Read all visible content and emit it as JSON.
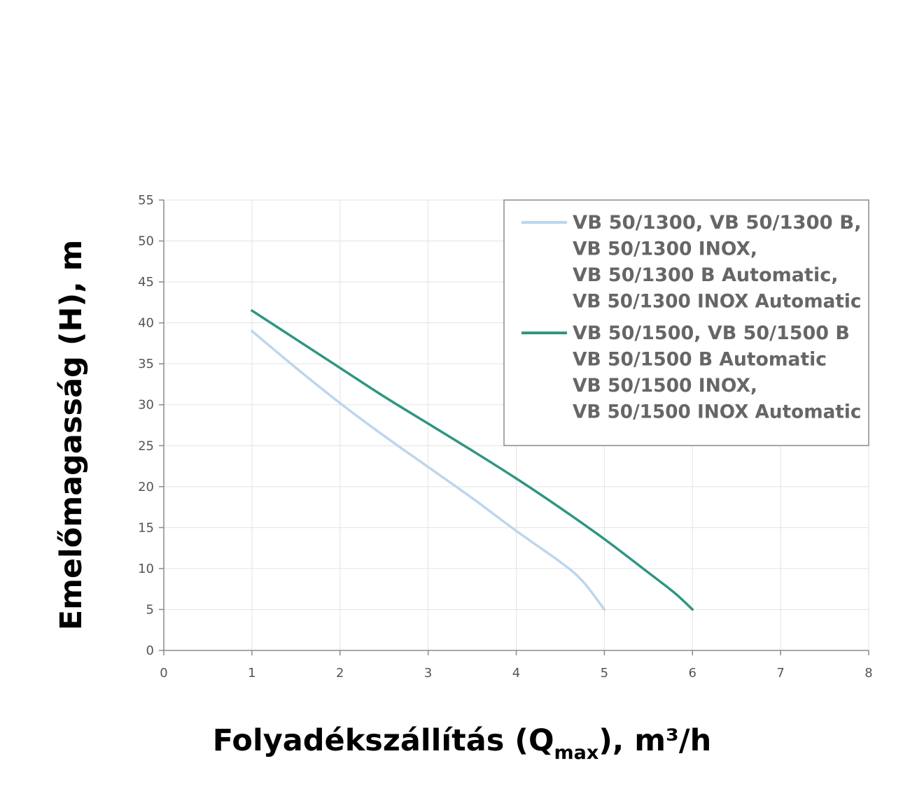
{
  "chart_data": {
    "type": "line",
    "xlabel": "Folyadékszállítás (Q",
    "xlabel_sub": "max",
    "xlabel_suffix": "), m³/h",
    "ylabel": "Emelőmagasság (H), m",
    "xlim": [
      0,
      8
    ],
    "ylim": [
      0,
      55
    ],
    "x_ticks": [
      0,
      1,
      2,
      3,
      4,
      5,
      6,
      7,
      8
    ],
    "y_ticks": [
      0,
      5,
      10,
      15,
      20,
      25,
      30,
      35,
      40,
      45,
      50,
      55
    ],
    "grid": true,
    "legend_position": "top-right",
    "series": [
      {
        "name": "VB 50/1300, VB 50/1300 B,\nVB 50/1300 INOX,\nVB 50/1300 B Automatic,\nVB 50/1300 INOX Automatic",
        "legend_lines": [
          "VB 50/1300, VB 50/1300 B,",
          "VB 50/1300 INOX,",
          "VB 50/1300 B Automatic,",
          "VB 50/1300 INOX Automatic"
        ],
        "color": "#bcd6ee",
        "x": [
          1,
          1.5,
          2,
          2.5,
          3,
          3.5,
          4,
          4.5,
          4.75,
          5
        ],
        "y": [
          39,
          34.5,
          30.2,
          26.2,
          22.4,
          18.6,
          14.6,
          10.8,
          8.5,
          5
        ]
      },
      {
        "name": "VB 50/1500, VB 50/1500 B\nVB 50/1500 B Automatic\nVB 50/1500 INOX,\nVB 50/1500 INOX Automatic",
        "legend_lines": [
          "VB 50/1500, VB 50/1500 B",
          "VB 50/1500 B Automatic",
          "VB 50/1500 INOX,",
          "VB 50/1500 INOX Automatic"
        ],
        "color": "#2e9682",
        "x": [
          1,
          1.5,
          2,
          2.5,
          3,
          3.5,
          4,
          4.5,
          5,
          5.5,
          5.8,
          6
        ],
        "y": [
          41.5,
          38,
          34.5,
          31,
          27.7,
          24.4,
          21,
          17.4,
          13.6,
          9.5,
          7,
          5
        ]
      }
    ]
  }
}
